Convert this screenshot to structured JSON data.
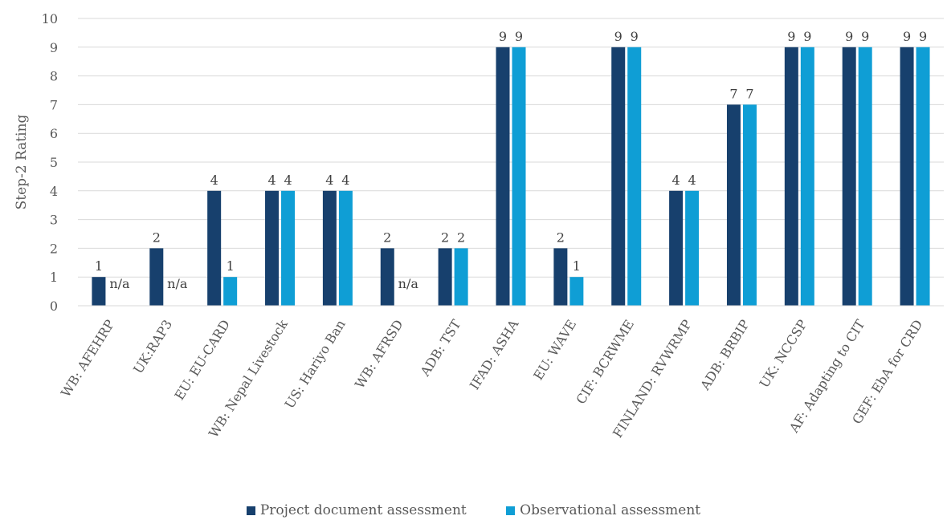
{
  "chart_data": {
    "type": "bar",
    "title": "",
    "xlabel": "",
    "ylabel": "Step-2  Rating",
    "ylim": [
      0,
      10
    ],
    "yticks": [
      0,
      1,
      2,
      3,
      4,
      5,
      6,
      7,
      8,
      9,
      10
    ],
    "grid": true,
    "legend_position": "bottom",
    "categories": [
      "WB: AFEHRP",
      "UK:RAP3",
      "EU: EU-CARD",
      "WB: Nepal Livestock",
      "US: Hariyo Ban",
      "WB: AFRSD",
      "ADB: TST",
      "IFAD: ASHA",
      "EU: WAVE",
      "CIF: BCRWME",
      "FINLAND: RVWRMP",
      "ADB: BRBIP",
      "UK: NCCSP",
      "AF: Adapting to CIT",
      "GEF: EbA for CRD"
    ],
    "series": [
      {
        "name": "Project document assessment",
        "color": "#17406d",
        "values": [
          1,
          2,
          4,
          4,
          4,
          2,
          2,
          9,
          2,
          9,
          4,
          7,
          9,
          9,
          9
        ],
        "labels": [
          "1",
          "2",
          "4",
          "4",
          "4",
          "2",
          "2",
          "9",
          "2",
          "9",
          "4",
          "7",
          "9",
          "9",
          "9"
        ]
      },
      {
        "name": "Observational assessment",
        "color": "#0f9ed5",
        "values": [
          null,
          null,
          1,
          4,
          4,
          null,
          2,
          9,
          1,
          9,
          4,
          7,
          9,
          9,
          9
        ],
        "labels": [
          "n/a",
          "n/a",
          "1",
          "4",
          "4",
          "n/a",
          "2",
          "9",
          "1",
          "9",
          "4",
          "7",
          "9",
          "9",
          "9"
        ]
      }
    ]
  }
}
